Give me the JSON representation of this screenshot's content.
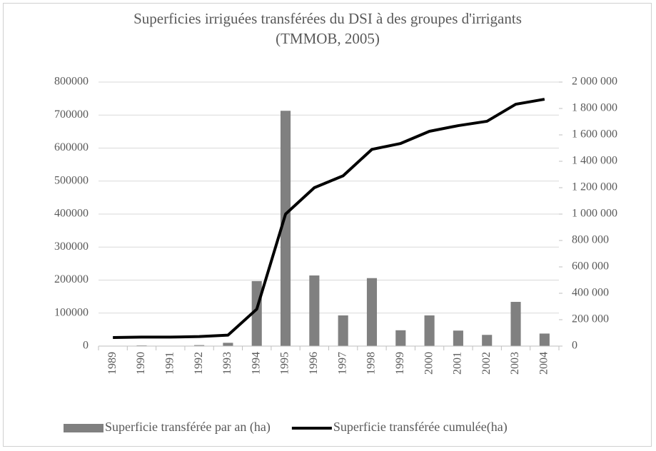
{
  "chart_data": {
    "type": "bar_line",
    "title": "Superficies irriguées transférées du DSI à des groupes d'irrigants (TMMOB, 2005)",
    "categories": [
      "1989",
      "1990",
      "1991",
      "1992",
      "1993",
      "1994",
      "1995",
      "1996",
      "1997",
      "1998",
      "1999",
      "2000",
      "2001",
      "2002",
      "2003",
      "2004"
    ],
    "series": [
      {
        "name": "Superficie transférée par an (ha)",
        "type": "bar",
        "color": "#808080",
        "axis": "y",
        "values": [
          500,
          2000,
          500,
          3000,
          10000,
          197000,
          713000,
          214000,
          93000,
          206000,
          48000,
          93000,
          47000,
          34000,
          134000,
          38000
        ]
      },
      {
        "name": "Superficie transférée cumulée(ha)",
        "type": "line",
        "color": "#000000",
        "axis": "y2",
        "values": [
          65000,
          68000,
          68000,
          72000,
          83000,
          280000,
          1000000,
          1200000,
          1290000,
          1490000,
          1535000,
          1627000,
          1670000,
          1703000,
          1832000,
          1870000
        ]
      }
    ],
    "ylim": [
      0,
      800000
    ],
    "yticks": [
      0,
      100000,
      200000,
      300000,
      400000,
      500000,
      600000,
      700000,
      800000
    ],
    "y2lim": [
      0,
      2000000
    ],
    "y2ticks": [
      0,
      {
        "value": 200000,
        "label": "200 000"
      },
      {
        "value": 400000,
        "label": "400 000"
      },
      {
        "value": 600000,
        "label": "600 000"
      },
      {
        "value": 800000,
        "label": "800 000"
      },
      {
        "value": 1000000,
        "label": "1 000 000"
      },
      {
        "value": 1200000,
        "label": "1 200 000"
      },
      {
        "value": 1400000,
        "label": "1 400 000"
      },
      {
        "value": 1600000,
        "label": "1 600 000"
      },
      {
        "value": 1800000,
        "label": "1 800 000"
      },
      {
        "value": 2000000,
        "label": "2 000 000"
      }
    ],
    "grid": true,
    "legend": "bottom"
  }
}
